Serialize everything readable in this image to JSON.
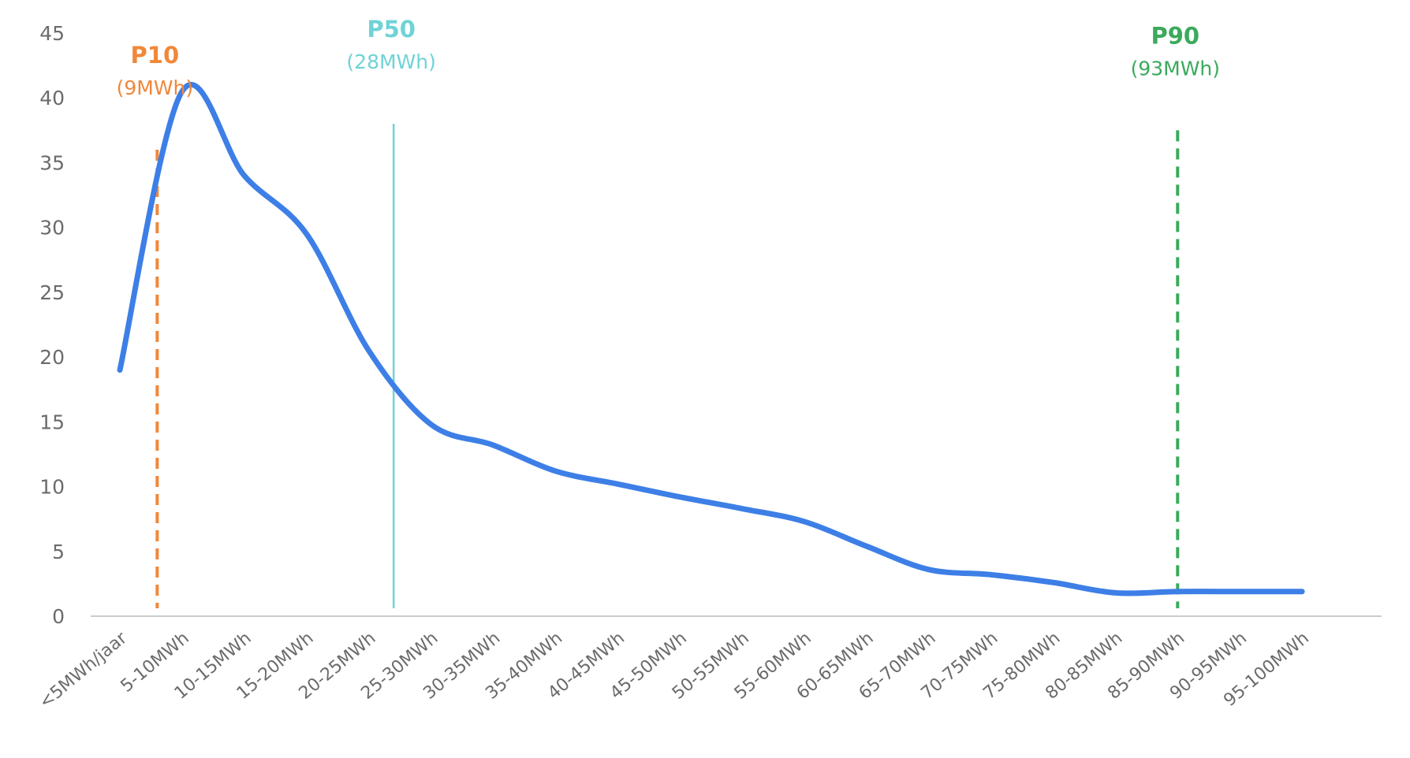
{
  "chart_data": {
    "type": "line",
    "title": "",
    "xlabel": "",
    "ylabel": "",
    "ylim": [
      0,
      45
    ],
    "yticks": [
      0,
      5,
      10,
      15,
      20,
      25,
      30,
      35,
      40,
      45
    ],
    "grid": false,
    "legend": "none",
    "categories": [
      "<5MWh/jaar",
      "5-10MWh",
      "10-15MWh",
      "15-20MWh",
      "20-25MWh",
      "25-30MWh",
      "30-35MWh",
      "35-40MWh",
      "40-45MWh",
      "45-50MWh",
      "50-55MWh",
      "55-60MWh",
      "60-65MWh",
      "65-70MWh",
      "70-75MWh",
      "75-80MWh",
      "80-85MWh",
      "85-90MWh",
      "90-95MWh",
      "95-100MWh"
    ],
    "series": [
      {
        "values": [
          19,
          40.5,
          34,
          29.5,
          20.5,
          14.8,
          13.2,
          11.2,
          10.2,
          9.2,
          8.3,
          7.3,
          5.4,
          3.6,
          3.2,
          2.6,
          1.8,
          1.9,
          1.9,
          1.9
        ]
      }
    ],
    "markers": [
      {
        "name": "P10",
        "value_label": "(9MWh)",
        "x_position": 0.6,
        "y_top": 36,
        "color": "#f0883a",
        "style": "dashed"
      },
      {
        "name": "P50",
        "value_label": "(28MWh)",
        "x_position": 4.4,
        "y_top": 38,
        "color": "#6fd3d6",
        "style": "solid"
      },
      {
        "name": "P90",
        "value_label": "(93MWh)",
        "x_position": 17.0,
        "y_top": 37.5,
        "color": "#3aaa5c",
        "style": "dashed"
      }
    ],
    "line_color": "#3d7fe6",
    "axis_color": "#cccccc"
  }
}
